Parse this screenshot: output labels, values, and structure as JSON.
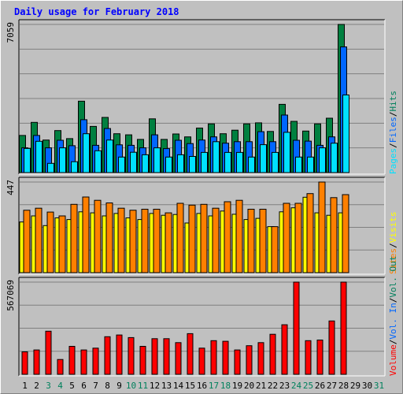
{
  "chart_data": {
    "type": "bar",
    "title": "Daily usage for February 2018",
    "days": [
      "1",
      "2",
      "3",
      "4",
      "5",
      "6",
      "7",
      "8",
      "9",
      "10",
      "11",
      "12",
      "13",
      "14",
      "15",
      "16",
      "17",
      "18",
      "19",
      "20",
      "21",
      "22",
      "23",
      "24",
      "25",
      "26",
      "27",
      "28",
      "29",
      "30",
      "31"
    ],
    "weekend_days": [
      "3",
      "4",
      "10",
      "11",
      "17",
      "18",
      "24",
      "25",
      "31"
    ],
    "right_axis_labels": [
      {
        "text": "Hits",
        "color": "#00805c"
      },
      {
        "text": "Files",
        "color": "#0066ff"
      },
      {
        "text": "Pages",
        "color": "#00e0ff"
      },
      {
        "text": "Visits",
        "color": "#ffff00"
      },
      {
        "text": "Sites",
        "color": "#ff8000"
      },
      {
        "text": "Vol. Out",
        "color": "#00805c"
      },
      {
        "text": "Vol. In",
        "color": "#0066ff"
      },
      {
        "text": "Volume",
        "color": "#ff0000"
      }
    ],
    "panels": [
      {
        "name": "hits-files-pages",
        "ymax_label": "7059",
        "ymax": 7059,
        "series": [
          {
            "name": "Hits",
            "color": "#008040",
            "values": [
              1770,
              2390,
              1550,
              2000,
              1620,
              3400,
              2200,
              2630,
              1850,
              1800,
              1580,
              2560,
              1580,
              1840,
              1700,
              2120,
              2320,
              1850,
              2020,
              2320,
              2370,
              1960,
              3250,
              2440,
              1980,
              2320,
              2590,
              7059
            ]
          },
          {
            "name": "Files",
            "color": "#0066ff",
            "values": [
              1180,
              1770,
              1180,
              1540,
              1280,
              2520,
              1300,
              2100,
              1320,
              1300,
              1180,
              1800,
              1140,
              1540,
              1380,
              1550,
              1700,
              1400,
              1470,
              1470,
              1950,
              1470,
              2740,
              1540,
              1500,
              1300,
              1700,
              5990
            ]
          },
          {
            "name": "Pages",
            "color": "#00e0ff",
            "values": [
              1150,
              1490,
              440,
              1180,
              520,
              1850,
              1040,
              1550,
              740,
              970,
              850,
              1180,
              740,
              850,
              770,
              960,
              1470,
              960,
              960,
              740,
              1330,
              960,
              1920,
              740,
              740,
              1180,
              1400,
              3700
            ]
          }
        ]
      },
      {
        "name": "visits-sites",
        "ymax_label": "447",
        "ymax": 447,
        "series": [
          {
            "name": "Visits",
            "color": "#ffff00",
            "values": [
              250,
              280,
              232,
              270,
              262,
              300,
              295,
              280,
              292,
              270,
              262,
              292,
              283,
              287,
              245,
              292,
              280,
              304,
              288,
              262,
              268,
              227,
              300,
              320,
              372,
              295,
              283,
              295
            ]
          },
          {
            "name": "Sites",
            "color": "#ff8000",
            "values": [
              308,
              318,
              299,
              280,
              337,
              373,
              357,
              344,
              318,
              308,
              313,
              313,
              295,
              342,
              333,
              337,
              318,
              350,
              357,
              313,
              313,
              227,
              342,
              342,
              390,
              447,
              370,
              385
            ]
          }
        ]
      },
      {
        "name": "volume",
        "ymax_label": "567069",
        "ymax": 567069,
        "series": [
          {
            "name": "Volume",
            "color": "#ff0000",
            "values": [
              138000,
              150000,
              265000,
              91000,
              172000,
              150000,
              161000,
              231000,
              242000,
              226000,
              172000,
              219000,
              219000,
              195000,
              250000,
              161000,
              207000,
              203000,
              150000,
              176000,
              195000,
              246000,
              305000,
              567069,
              207000,
              211000,
              328000,
              567069
            ]
          }
        ]
      }
    ]
  }
}
